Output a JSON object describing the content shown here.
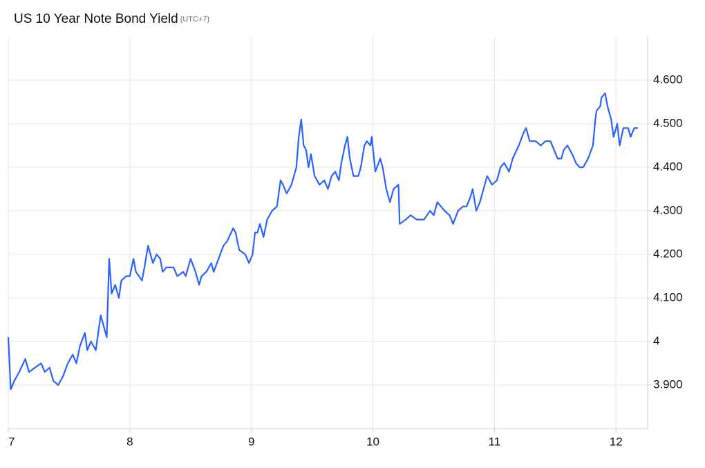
{
  "chart_data": {
    "type": "line",
    "title": "US 10 Year Note Bond Yield",
    "subtitle": "(UTC+7)",
    "color": "#2962ff",
    "grid": true,
    "xlim": [
      7,
      12.26
    ],
    "xticks": [
      7,
      8,
      9,
      10,
      11,
      12
    ],
    "ylim": [
      3.8,
      4.7
    ],
    "yticks": [
      {
        "value": 3.9,
        "label": "3.900"
      },
      4,
      {
        "value": 4.1,
        "label": "4.100"
      },
      {
        "value": 4.2,
        "label": "4.200"
      },
      {
        "value": 4.3,
        "label": "4.300"
      },
      {
        "value": 4.4,
        "label": "4.400"
      },
      {
        "value": 4.5,
        "label": "4.500"
      },
      {
        "value": 4.6,
        "label": "4.600"
      }
    ],
    "x": [
      7.0,
      7.02,
      7.05,
      7.09,
      7.14,
      7.17,
      7.22,
      7.27,
      7.3,
      7.34,
      7.37,
      7.41,
      7.45,
      7.49,
      7.53,
      7.56,
      7.59,
      7.63,
      7.65,
      7.68,
      7.72,
      7.76,
      7.78,
      7.81,
      7.83,
      7.85,
      7.88,
      7.91,
      7.93,
      7.97,
      8.0,
      8.03,
      8.05,
      8.1,
      8.12,
      8.15,
      8.19,
      8.22,
      8.25,
      8.27,
      8.3,
      8.36,
      8.39,
      8.44,
      8.46,
      8.5,
      8.54,
      8.57,
      8.59,
      8.63,
      8.67,
      8.69,
      8.73,
      8.77,
      8.8,
      8.85,
      8.87,
      8.9,
      8.95,
      8.98,
      9.01,
      9.03,
      9.05,
      9.07,
      9.1,
      9.13,
      9.17,
      9.21,
      9.24,
      9.26,
      9.29,
      9.33,
      9.37,
      9.39,
      9.41,
      9.43,
      9.45,
      9.47,
      9.49,
      9.52,
      9.56,
      9.6,
      9.63,
      9.66,
      9.69,
      9.72,
      9.74,
      9.77,
      9.79,
      9.81,
      9.84,
      9.88,
      9.9,
      9.93,
      9.95,
      9.98,
      9.99,
      10.02,
      10.06,
      10.08,
      10.11,
      10.14,
      10.17,
      10.21,
      10.22,
      10.27,
      10.31,
      10.36,
      10.42,
      10.47,
      10.5,
      10.53,
      10.56,
      10.59,
      10.63,
      10.66,
      10.7,
      10.74,
      10.77,
      10.8,
      10.82,
      10.85,
      10.88,
      10.91,
      10.94,
      10.98,
      11.02,
      11.05,
      11.08,
      11.12,
      11.15,
      11.2,
      11.24,
      11.26,
      11.29,
      11.34,
      11.38,
      11.42,
      11.46,
      11.49,
      11.52,
      11.55,
      11.57,
      11.6,
      11.64,
      11.67,
      11.7,
      11.73,
      11.77,
      11.81,
      11.83,
      11.84,
      11.87,
      11.88,
      11.91,
      11.93,
      11.96,
      11.98,
      12.01,
      12.03,
      12.06,
      12.1,
      12.12,
      12.15,
      12.18
    ],
    "values": [
      4.01,
      3.89,
      3.91,
      3.93,
      3.96,
      3.93,
      3.94,
      3.95,
      3.93,
      3.94,
      3.91,
      3.9,
      3.92,
      3.95,
      3.97,
      3.95,
      3.99,
      4.02,
      3.98,
      4.0,
      3.98,
      4.06,
      4.04,
      4.01,
      4.19,
      4.11,
      4.13,
      4.1,
      4.14,
      4.15,
      4.15,
      4.19,
      4.16,
      4.14,
      4.17,
      4.22,
      4.18,
      4.2,
      4.19,
      4.16,
      4.17,
      4.17,
      4.15,
      4.16,
      4.15,
      4.19,
      4.16,
      4.13,
      4.15,
      4.16,
      4.18,
      4.16,
      4.19,
      4.22,
      4.23,
      4.26,
      4.25,
      4.21,
      4.2,
      4.18,
      4.2,
      4.25,
      4.25,
      4.27,
      4.24,
      4.28,
      4.3,
      4.31,
      4.37,
      4.36,
      4.34,
      4.36,
      4.4,
      4.47,
      4.51,
      4.45,
      4.44,
      4.4,
      4.43,
      4.38,
      4.36,
      4.37,
      4.35,
      4.38,
      4.39,
      4.37,
      4.41,
      4.45,
      4.47,
      4.42,
      4.38,
      4.38,
      4.4,
      4.45,
      4.46,
      4.45,
      4.47,
      4.39,
      4.42,
      4.4,
      4.35,
      4.32,
      4.35,
      4.36,
      4.27,
      4.28,
      4.29,
      4.28,
      4.28,
      4.3,
      4.29,
      4.32,
      4.31,
      4.3,
      4.29,
      4.27,
      4.3,
      4.31,
      4.31,
      4.33,
      4.35,
      4.3,
      4.32,
      4.35,
      4.38,
      4.36,
      4.37,
      4.4,
      4.41,
      4.39,
      4.42,
      4.45,
      4.48,
      4.49,
      4.46,
      4.46,
      4.45,
      4.46,
      4.46,
      4.44,
      4.42,
      4.42,
      4.44,
      4.45,
      4.43,
      4.41,
      4.4,
      4.4,
      4.42,
      4.45,
      4.51,
      4.53,
      4.54,
      4.56,
      4.57,
      4.54,
      4.51,
      4.47,
      4.5,
      4.45,
      4.49,
      4.49,
      4.47,
      4.49,
      4.49
    ]
  }
}
